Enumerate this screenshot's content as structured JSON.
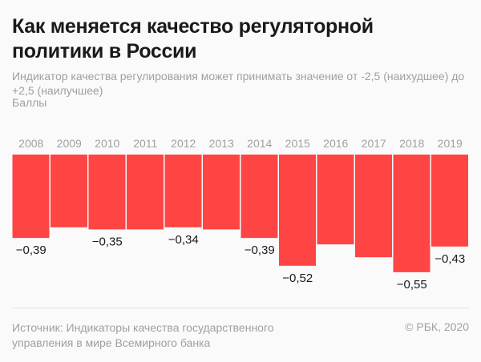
{
  "header": {
    "title": "Как меняется качество регуляторной политики в России",
    "subtitle": "Индикатор качества регулирования может принимать значение от -2,5 (наихудшее) до +2,5 (наилучшее)",
    "units": "Баллы"
  },
  "footer": {
    "source": "Источник: Индикаторы качества государственного управления в мире Всемирного банка",
    "copyright": "© РБК, 2020"
  },
  "colors": {
    "bar": "#ff4444",
    "label": "#1a1a1a",
    "tick": "#a0a0a0"
  },
  "chart_data": {
    "type": "bar",
    "title": "Как меняется качество регуляторной политики в России",
    "ylabel": "Баллы",
    "categories": [
      "2008",
      "2009",
      "2010",
      "2011",
      "2012",
      "2013",
      "2014",
      "2015",
      "2016",
      "2017",
      "2018",
      "2019"
    ],
    "values": [
      -0.39,
      -0.34,
      -0.35,
      -0.35,
      -0.34,
      -0.35,
      -0.39,
      -0.52,
      -0.42,
      -0.48,
      -0.55,
      -0.43
    ],
    "data_labels": [
      "−0,39",
      "",
      "−0,35",
      "",
      "−0,34",
      "",
      "−0,39",
      "−0,52",
      "",
      "",
      "−0,55",
      "−0,43"
    ],
    "ylim": [
      -0.6,
      0
    ],
    "grid": false
  }
}
